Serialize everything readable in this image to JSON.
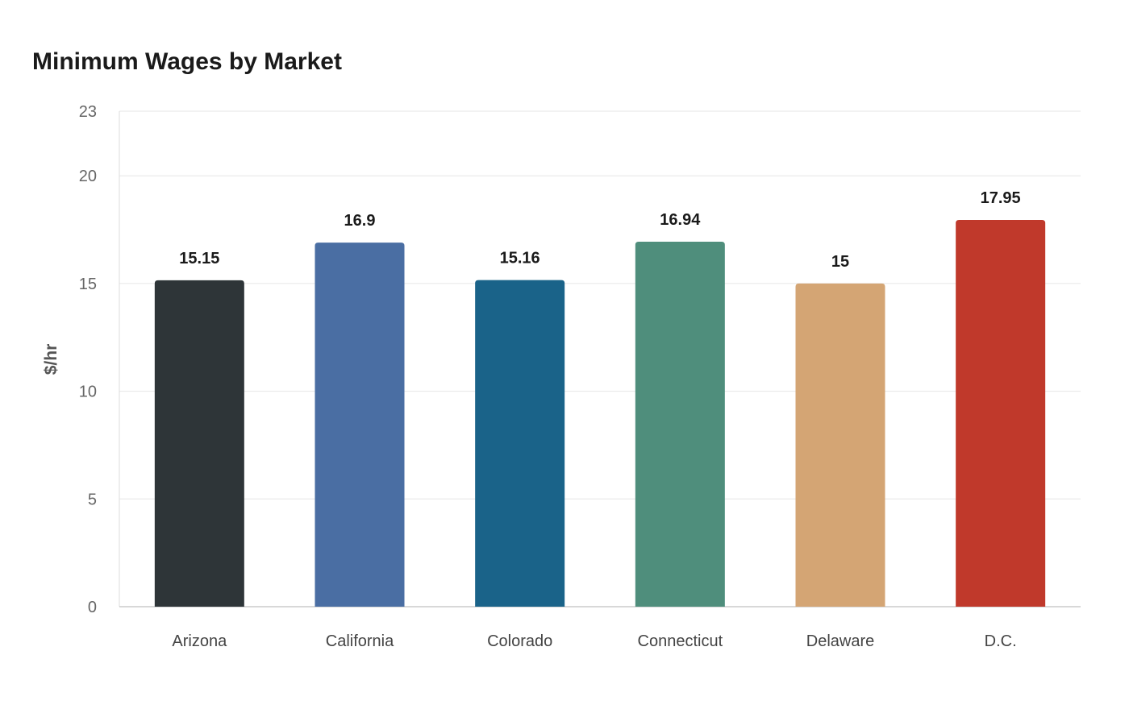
{
  "chart_data": {
    "type": "bar",
    "title": "Minimum Wages by Market",
    "xlabel": "",
    "ylabel": "$/hr",
    "categories": [
      "Arizona",
      "California",
      "Colorado",
      "Connecticut",
      "Delaware",
      "D.C."
    ],
    "values": [
      15.15,
      16.9,
      15.16,
      16.94,
      15,
      17.95
    ],
    "value_labels": [
      "15.15",
      "16.9",
      "15.16",
      "16.94",
      "15",
      "17.95"
    ],
    "colors": [
      "#2e3538",
      "#4a6ea3",
      "#1a6389",
      "#4f8e7c",
      "#d4a574",
      "#c0392b"
    ],
    "ylim": [
      0,
      23
    ],
    "yticks": [
      0,
      5,
      10,
      15,
      20,
      23
    ],
    "grid": true,
    "legend": "none"
  }
}
